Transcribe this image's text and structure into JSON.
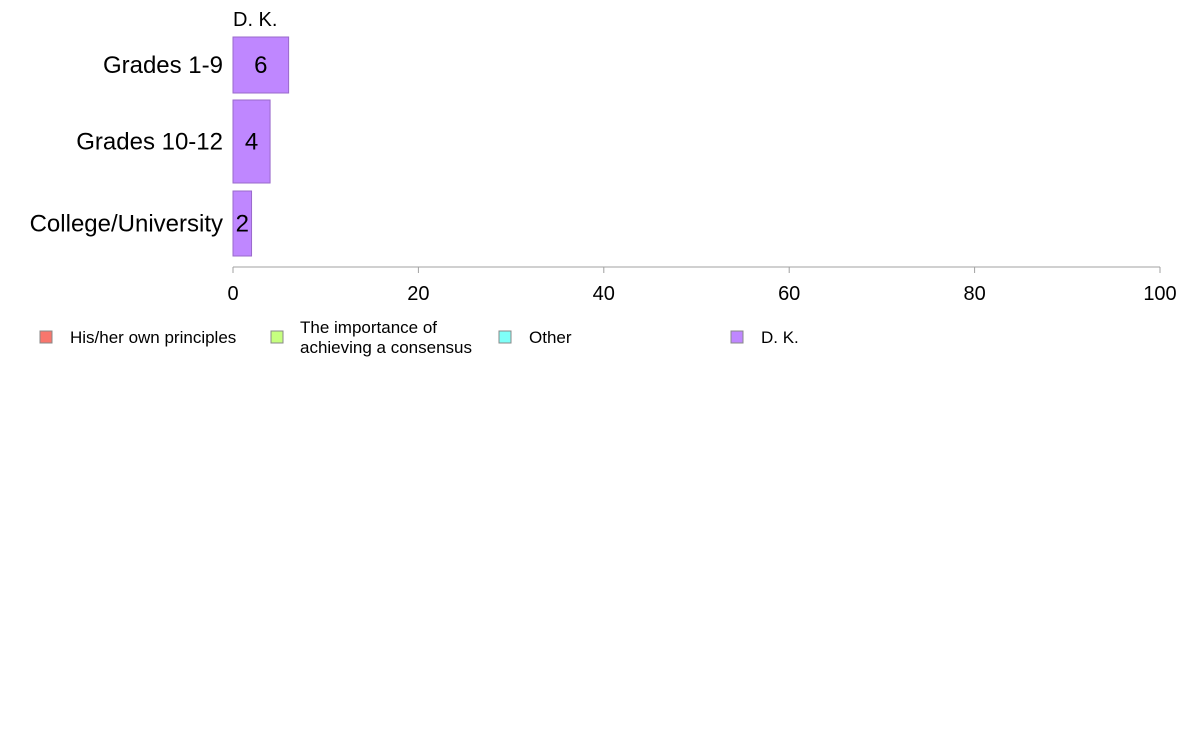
{
  "chart_data": {
    "type": "bar",
    "orientation": "horizontal",
    "stacked": true,
    "column_title": "D. K.",
    "categories": [
      "Grades 1-9",
      "Grades 10-12",
      "College/University"
    ],
    "series": [
      {
        "name": "His/her own principles",
        "color": "#f8766d",
        "values": [
          0,
          0,
          0
        ]
      },
      {
        "name": "The importance of achieving a consensus",
        "name_lines": [
          "The importance of",
          "achieving a consensus"
        ],
        "color": "#c6ff7f",
        "values": [
          0,
          0,
          0
        ]
      },
      {
        "name": "Other",
        "color": "#7ffff8",
        "values": [
          0,
          0,
          0
        ]
      },
      {
        "name": "D. K.",
        "color": "#bf87ff",
        "values": [
          6,
          4,
          2
        ]
      }
    ],
    "data_labels": [
      "6",
      "4",
      "2"
    ],
    "xlim": [
      0,
      100
    ],
    "xticks": [
      0,
      20,
      40,
      60,
      80,
      100
    ],
    "grid": false,
    "legend_position": "bottom"
  }
}
